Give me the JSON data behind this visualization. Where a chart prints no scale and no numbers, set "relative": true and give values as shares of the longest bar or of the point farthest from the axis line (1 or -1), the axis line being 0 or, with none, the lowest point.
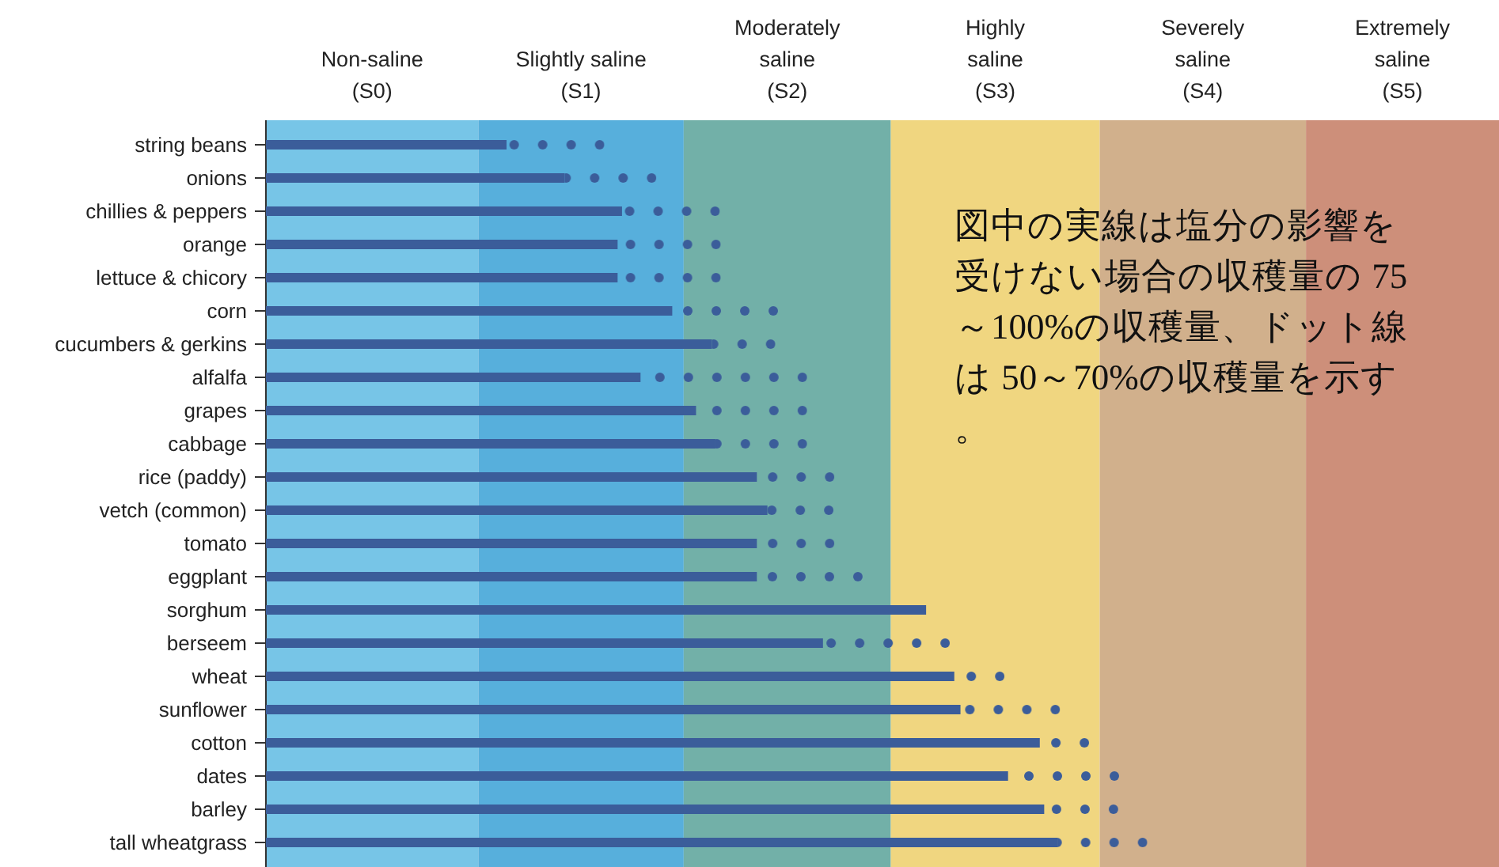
{
  "chart_data": {
    "type": "bar",
    "orientation": "horizontal",
    "stacked": true,
    "relative": true,
    "legend": false,
    "grid": false,
    "categories": [
      "string beans",
      "onions",
      "chillies & peppers",
      "orange",
      "lettuce & chicory",
      "corn",
      "cucumbers & gerkins",
      "alfalfa",
      "grapes",
      "cabbage",
      "rice (paddy)",
      "vetch (common)",
      "tomato",
      "eggplant",
      "sorghum",
      "berseem",
      "wheat",
      "sunflower",
      "cotton",
      "dates",
      "barley",
      "tall wheatgrass"
    ],
    "series": [
      {
        "color": "#3b5d9a",
        "line_style": "solid",
        "values": [
          0.273,
          0.339,
          0.404,
          0.399,
          0.399,
          0.461,
          0.506,
          0.425,
          0.488,
          0.51,
          0.557,
          0.569,
          0.557,
          0.557,
          0.749,
          0.632,
          0.781,
          0.788,
          0.878,
          0.842,
          0.883,
          0.898
        ]
      },
      {
        "color": "#3b5d9a",
        "line_style": "dotted",
        "values": [
          0.111,
          0.104,
          0.111,
          0.117,
          0.117,
          0.12,
          0.072,
          0.189,
          0.126,
          0.104,
          0.088,
          0.075,
          0.088,
          0.12,
          null,
          0.144,
          0.057,
          0.113,
          0.056,
          0.126,
          0.084,
          0.102
        ]
      }
    ],
    "bands": [
      {
        "axis": "x",
        "from": 0,
        "to": 0.241,
        "label": "Non-saline\n(S0)",
        "color": "#77c5e7"
      },
      {
        "axis": "x",
        "from": 0.241,
        "to": 0.474,
        "label": "Slightly saline\n(S1)",
        "color": "#57afdc"
      },
      {
        "axis": "x",
        "from": 0.474,
        "to": 0.709,
        "label": "Moderately\nsaline\n(S2)",
        "color": "#72b0a8"
      },
      {
        "axis": "x",
        "from": 0.709,
        "to": 0.946,
        "label": "Highly\nsaline\n(S3)",
        "color": "#f0d680"
      },
      {
        "axis": "x",
        "from": 0.946,
        "to": 1.18,
        "label": "Severely\nsaline\n(S4)",
        "color": "#d1b08c"
      },
      {
        "axis": "x",
        "from": 1.18,
        "to": 1.399,
        "label": "Extremely\nsaline\n(S5)",
        "color": "#cd8f7a"
      }
    ],
    "annotations": [
      "図中の実線は塩分の影響を受けない場合の収穫量の 75～100%の収穫量、ドット線は 50～70%の収穫量を示す。"
    ]
  }
}
